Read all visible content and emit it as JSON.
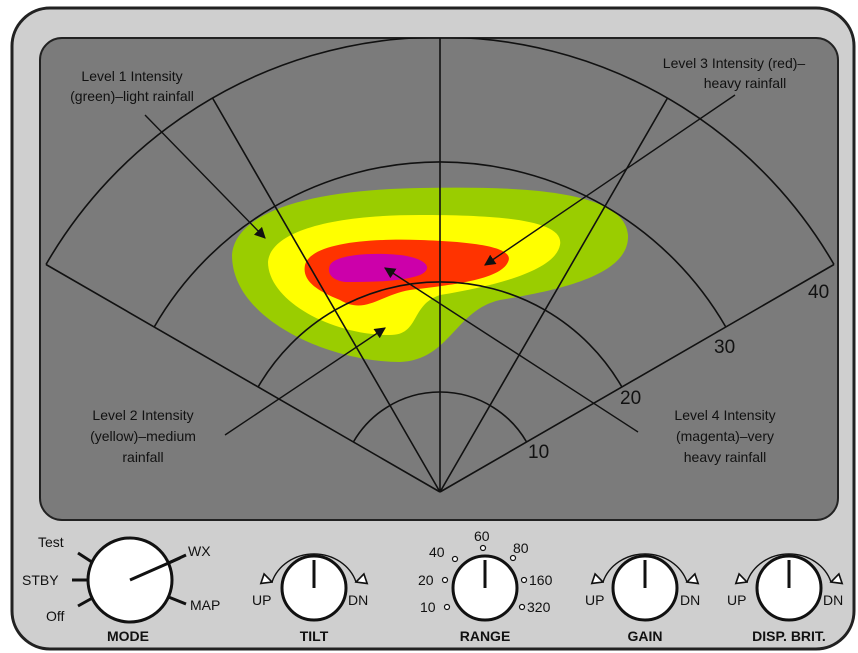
{
  "screen": {
    "range_labels": [
      "10",
      "20",
      "30",
      "40"
    ],
    "annotations": [
      {
        "lines": [
          "Level 1 Intensity",
          "(green)–light rainfall"
        ]
      },
      {
        "lines": [
          "Level 3 Intensity (red)–",
          "heavy rainfall"
        ]
      },
      {
        "lines": [
          "Level 2 Intensity",
          "(yellow)–medium",
          "rainfall"
        ]
      },
      {
        "lines": [
          "Level 4 Intensity",
          "(magenta)–very",
          "heavy rainfall"
        ]
      }
    ]
  },
  "controls": {
    "mode": {
      "label": "MODE",
      "positions": [
        "Test",
        "STBY",
        "Off",
        "WX",
        "MAP"
      ]
    },
    "tilt": {
      "label": "TILT",
      "up": "UP",
      "down": "DN"
    },
    "range": {
      "label": "RANGE",
      "positions": [
        "10",
        "20",
        "40",
        "60",
        "80",
        "160",
        "320"
      ]
    },
    "gain": {
      "label": "GAIN",
      "up": "UP",
      "down": "DN"
    },
    "brightness": {
      "label": "DISP. BRIT.",
      "up": "UP",
      "down": "DN"
    }
  }
}
